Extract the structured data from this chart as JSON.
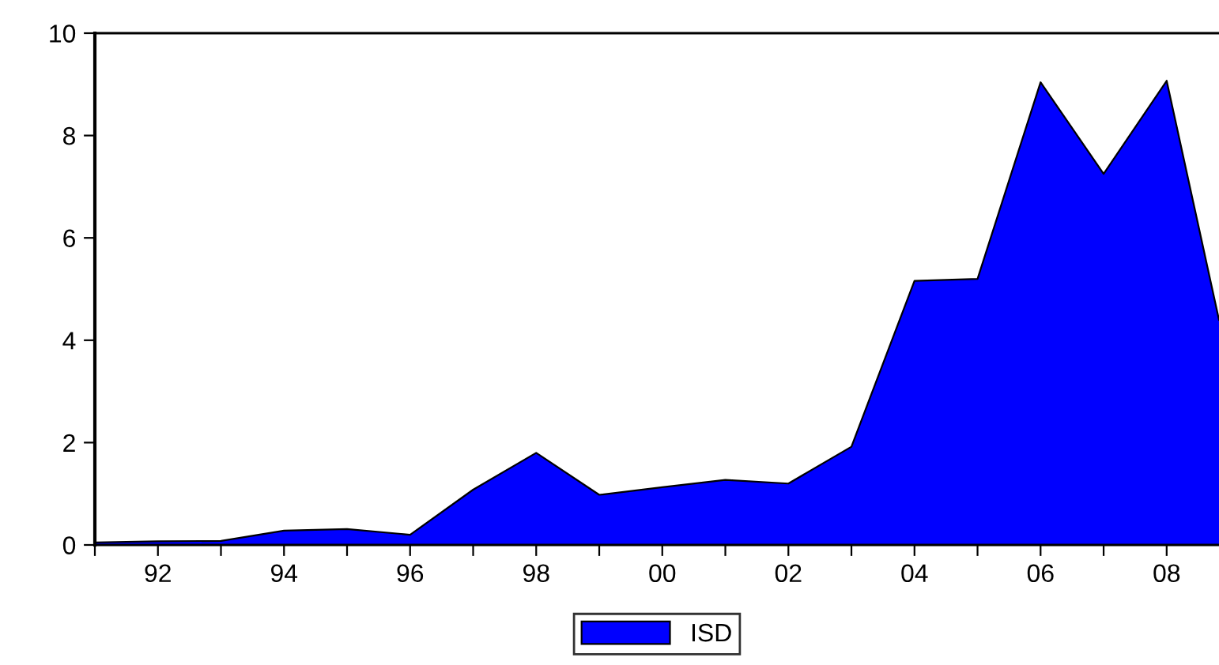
{
  "chart_data": {
    "type": "area",
    "x": [
      1991,
      1992,
      1993,
      1994,
      1995,
      1996,
      1997,
      1998,
      1999,
      2000,
      2001,
      2002,
      2003,
      2004,
      2005,
      2006,
      2007,
      2008,
      2008.83
    ],
    "series": [
      {
        "name": "ISD",
        "color": "#0000ff",
        "values": [
          0.05,
          0.07,
          0.08,
          0.28,
          0.31,
          0.2,
          1.08,
          1.8,
          0.98,
          1.13,
          1.27,
          1.2,
          1.92,
          5.16,
          5.2,
          9.04,
          7.25,
          9.07,
          4.4
        ]
      }
    ],
    "xlim": [
      1991,
      2008.83
    ],
    "ylim": [
      0,
      10
    ],
    "xticks": [
      {
        "value": 1991,
        "label": null
      },
      {
        "value": 1992,
        "label": "92"
      },
      {
        "value": 1993,
        "label": null
      },
      {
        "value": 1994,
        "label": "94"
      },
      {
        "value": 1995,
        "label": null
      },
      {
        "value": 1996,
        "label": "96"
      },
      {
        "value": 1997,
        "label": null
      },
      {
        "value": 1998,
        "label": "98"
      },
      {
        "value": 1999,
        "label": null
      },
      {
        "value": 2000,
        "label": "00"
      },
      {
        "value": 2001,
        "label": null
      },
      {
        "value": 2002,
        "label": "02"
      },
      {
        "value": 2003,
        "label": null
      },
      {
        "value": 2004,
        "label": "04"
      },
      {
        "value": 2005,
        "label": null
      },
      {
        "value": 2006,
        "label": "06"
      },
      {
        "value": 2007,
        "label": null
      },
      {
        "value": 2008,
        "label": "08"
      }
    ],
    "yticks": [
      0,
      2,
      4,
      6,
      8,
      10
    ],
    "grid": false,
    "legend": "bottom"
  }
}
